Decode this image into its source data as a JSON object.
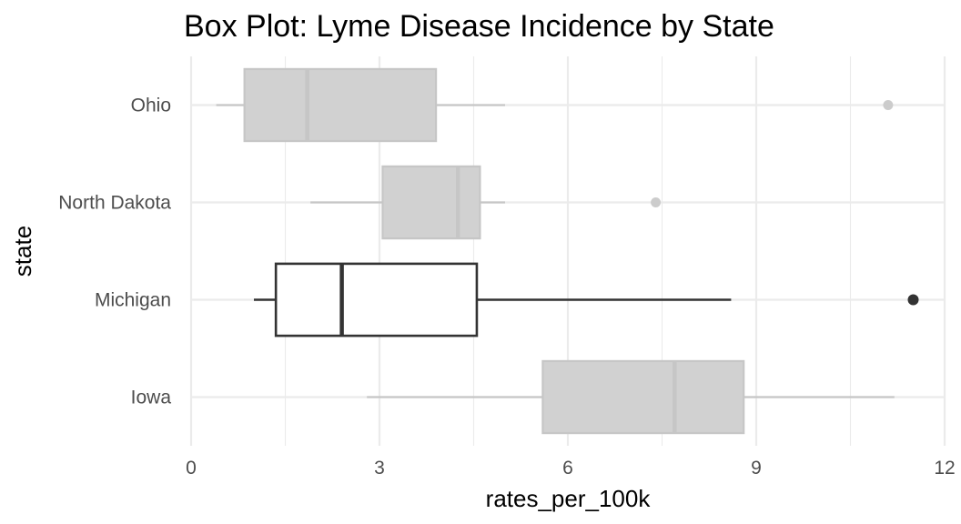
{
  "chart_data": {
    "type": "boxplot",
    "title": "Box Plot: Lyme Disease Incidence by State",
    "xlabel": "rates_per_100k",
    "ylabel": "state",
    "xlim": [
      0,
      12
    ],
    "xticks": [
      0,
      3,
      6,
      9,
      12
    ],
    "grid": true,
    "categories": [
      "Ohio",
      "North Dakota",
      "Michigan",
      "Iowa"
    ],
    "highlighted": "Michigan",
    "colors": {
      "highlight_stroke": "#333333",
      "highlight_fill": "#ffffff",
      "muted_fill": "#d1d1d1",
      "muted_stroke": "#c6c6c6",
      "muted_outlier": "#cccccc"
    },
    "boxes": [
      {
        "state": "Ohio",
        "whisker_low": 0.4,
        "q1": 0.85,
        "median": 1.85,
        "q3": 3.9,
        "whisker_high": 5.0,
        "outliers": [
          11.1
        ]
      },
      {
        "state": "North Dakota",
        "whisker_low": 1.9,
        "q1": 3.05,
        "median": 4.25,
        "q3": 4.6,
        "whisker_high": 5.0,
        "outliers": [
          7.4
        ]
      },
      {
        "state": "Michigan",
        "whisker_low": 1.0,
        "q1": 1.35,
        "median": 2.4,
        "q3": 4.55,
        "whisker_high": 8.6,
        "outliers": [
          11.5
        ]
      },
      {
        "state": "Iowa",
        "whisker_low": 2.8,
        "q1": 5.6,
        "median": 7.7,
        "q3": 8.8,
        "whisker_high": 11.2,
        "outliers": []
      }
    ]
  }
}
